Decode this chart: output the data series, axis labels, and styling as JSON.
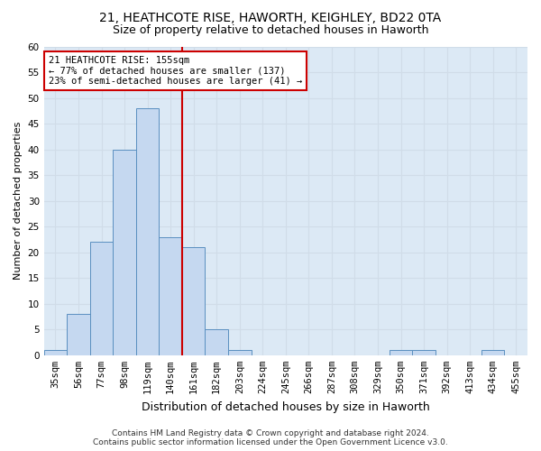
{
  "title_line1": "21, HEATHCOTE RISE, HAWORTH, KEIGHLEY, BD22 0TA",
  "title_line2": "Size of property relative to detached houses in Haworth",
  "xlabel": "Distribution of detached houses by size in Haworth",
  "ylabel": "Number of detached properties",
  "bar_labels": [
    "35sqm",
    "56sqm",
    "77sqm",
    "98sqm",
    "119sqm",
    "140sqm",
    "161sqm",
    "182sqm",
    "203sqm",
    "224sqm",
    "245sqm",
    "266sqm",
    "287sqm",
    "308sqm",
    "329sqm",
    "350sqm",
    "371sqm",
    "392sqm",
    "413sqm",
    "434sqm",
    "455sqm"
  ],
  "bar_values": [
    1,
    8,
    22,
    40,
    48,
    23,
    21,
    5,
    1,
    0,
    0,
    0,
    0,
    0,
    0,
    1,
    1,
    0,
    0,
    1,
    0
  ],
  "bar_color": "#c5d8f0",
  "bar_edge_color": "#5a8fc0",
  "grid_color": "#d0dce8",
  "annotation_text": "21 HEATHCOTE RISE: 155sqm\n← 77% of detached houses are smaller (137)\n23% of semi-detached houses are larger (41) →",
  "annotation_box_color": "#ffffff",
  "annotation_box_edge": "#cc0000",
  "vline_x_index": 5.52,
  "vline_color": "#cc0000",
  "ylim": [
    0,
    60
  ],
  "yticks": [
    0,
    5,
    10,
    15,
    20,
    25,
    30,
    35,
    40,
    45,
    50,
    55,
    60
  ],
  "footer_line1": "Contains HM Land Registry data © Crown copyright and database right 2024.",
  "footer_line2": "Contains public sector information licensed under the Open Government Licence v3.0.",
  "bg_color": "#dce9f5",
  "fig_bg_color": "#ffffff",
  "title1_fontsize": 10,
  "title2_fontsize": 9,
  "ylabel_fontsize": 8,
  "xlabel_fontsize": 9,
  "tick_fontsize": 7.5,
  "annotation_fontsize": 7.5,
  "footer_fontsize": 6.5
}
